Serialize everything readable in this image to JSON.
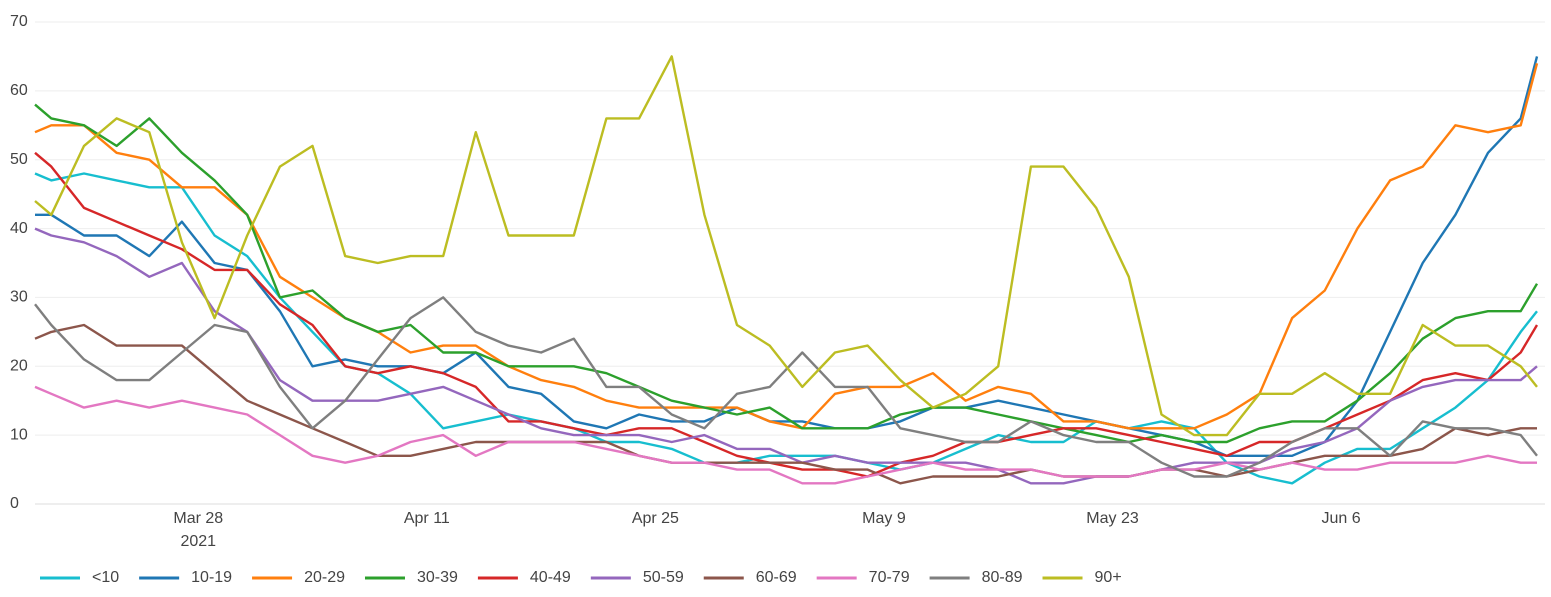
{
  "chart_data": {
    "type": "line",
    "x": [
      "2021-03-18",
      "2021-03-19",
      "2021-03-21",
      "2021-03-23",
      "2021-03-25",
      "2021-03-27",
      "2021-03-29",
      "2021-03-31",
      "2021-04-02",
      "2021-04-04",
      "2021-04-06",
      "2021-04-08",
      "2021-04-10",
      "2021-04-12",
      "2021-04-14",
      "2021-04-16",
      "2021-04-18",
      "2021-04-20",
      "2021-04-22",
      "2021-04-24",
      "2021-04-26",
      "2021-04-28",
      "2021-04-30",
      "2021-05-02",
      "2021-05-04",
      "2021-05-06",
      "2021-05-08",
      "2021-05-10",
      "2021-05-12",
      "2021-05-14",
      "2021-05-16",
      "2021-05-18",
      "2021-05-20",
      "2021-05-22",
      "2021-05-24",
      "2021-05-26",
      "2021-05-28",
      "2021-05-30",
      "2021-06-01",
      "2021-06-03",
      "2021-06-05",
      "2021-06-07",
      "2021-06-09",
      "2021-06-11",
      "2021-06-13",
      "2021-06-15",
      "2021-06-17",
      "2021-06-18"
    ],
    "xlim": [
      "2021-03-18",
      "2021-06-18"
    ],
    "xticks": [
      {
        "value": "2021-03-28",
        "label": "Mar 28"
      },
      {
        "value": "2021-04-11",
        "label": "Apr 11"
      },
      {
        "value": "2021-04-25",
        "label": "Apr 25"
      },
      {
        "value": "2021-05-09",
        "label": "May 9"
      },
      {
        "value": "2021-05-23",
        "label": "May 23"
      },
      {
        "value": "2021-06-06",
        "label": "Jun 6"
      }
    ],
    "x_year": "2021",
    "ylim": [
      0,
      70
    ],
    "yticks": [
      0,
      10,
      20,
      30,
      40,
      50,
      60,
      70
    ],
    "grid": true,
    "legend": "bottom",
    "series": [
      {
        "name": "<10",
        "color": "#17becf",
        "values": [
          48,
          47,
          48,
          47,
          46,
          46,
          39,
          36,
          30,
          25,
          20,
          19,
          16,
          11,
          12,
          13,
          12,
          11,
          9,
          9,
          8,
          6,
          6,
          7,
          7,
          7,
          6,
          5,
          6,
          8,
          10,
          9,
          9,
          12,
          11,
          12,
          11,
          6,
          4,
          3,
          6,
          8,
          8,
          11,
          14,
          18,
          25,
          28
        ]
      },
      {
        "name": "10-19",
        "color": "#1f77b4",
        "values": [
          42,
          42,
          39,
          39,
          36,
          41,
          35,
          34,
          28,
          20,
          21,
          20,
          20,
          19,
          22,
          17,
          16,
          12,
          11,
          13,
          12,
          12,
          14,
          12,
          12,
          11,
          11,
          12,
          14,
          14,
          15,
          14,
          13,
          12,
          11,
          10,
          9,
          7,
          7,
          7,
          9,
          15,
          25,
          35,
          42,
          51,
          56,
          65
        ]
      },
      {
        "name": "20-29",
        "color": "#ff7f0e",
        "values": [
          54,
          55,
          55,
          51,
          50,
          46,
          46,
          42,
          33,
          30,
          27,
          25,
          22,
          23,
          23,
          20,
          18,
          17,
          15,
          14,
          14,
          14,
          14,
          12,
          11,
          16,
          17,
          17,
          19,
          15,
          17,
          16,
          12,
          12,
          11,
          11,
          11,
          13,
          16,
          27,
          31,
          40,
          47,
          49,
          55,
          54,
          55,
          64
        ]
      },
      {
        "name": "30-39",
        "color": "#2ca02c",
        "values": [
          58,
          56,
          55,
          52,
          56,
          51,
          47,
          42,
          30,
          31,
          27,
          25,
          26,
          22,
          22,
          20,
          20,
          20,
          19,
          17,
          15,
          14,
          13,
          14,
          11,
          11,
          11,
          13,
          14,
          14,
          13,
          12,
          11,
          10,
          9,
          10,
          9,
          9,
          11,
          12,
          12,
          15,
          19,
          24,
          27,
          28,
          28,
          32
        ]
      },
      {
        "name": "40-49",
        "color": "#d62728",
        "values": [
          51,
          49,
          43,
          41,
          39,
          37,
          34,
          34,
          29,
          26,
          20,
          19,
          20,
          19,
          17,
          12,
          12,
          11,
          10,
          11,
          11,
          9,
          7,
          6,
          5,
          5,
          4,
          6,
          7,
          9,
          9,
          10,
          11,
          11,
          10,
          9,
          8,
          7,
          9,
          9,
          11,
          13,
          15,
          18,
          19,
          18,
          22,
          26
        ]
      },
      {
        "name": "50-59",
        "color": "#9467bd",
        "values": [
          40,
          39,
          38,
          36,
          33,
          35,
          28,
          25,
          18,
          15,
          15,
          15,
          16,
          17,
          15,
          13,
          11,
          10,
          10,
          10,
          9,
          10,
          8,
          8,
          6,
          7,
          6,
          6,
          6,
          6,
          5,
          3,
          3,
          4,
          4,
          5,
          6,
          6,
          6,
          8,
          9,
          11,
          15,
          17,
          18,
          18,
          18,
          20
        ]
      },
      {
        "name": "60-69",
        "color": "#8c564b",
        "values": [
          24,
          25,
          26,
          23,
          23,
          23,
          19,
          15,
          13,
          11,
          9,
          7,
          7,
          8,
          9,
          9,
          9,
          9,
          9,
          7,
          6,
          6,
          6,
          6,
          6,
          5,
          5,
          3,
          4,
          4,
          4,
          5,
          4,
          4,
          4,
          5,
          5,
          4,
          5,
          6,
          7,
          7,
          7,
          8,
          11,
          10,
          11,
          11
        ]
      },
      {
        "name": "70-79",
        "color": "#e377c2",
        "values": [
          17,
          16,
          14,
          15,
          14,
          15,
          14,
          13,
          10,
          7,
          6,
          7,
          9,
          10,
          7,
          9,
          9,
          9,
          8,
          7,
          6,
          6,
          5,
          5,
          3,
          3,
          4,
          5,
          6,
          5,
          5,
          5,
          4,
          4,
          4,
          5,
          5,
          6,
          5,
          6,
          5,
          5,
          6,
          6,
          6,
          7,
          6,
          6
        ]
      },
      {
        "name": "80-89",
        "color": "#7f7f7f",
        "values": [
          29,
          26,
          21,
          18,
          18,
          22,
          26,
          25,
          17,
          11,
          15,
          21,
          27,
          30,
          25,
          23,
          22,
          24,
          17,
          17,
          13,
          11,
          16,
          17,
          22,
          17,
          17,
          11,
          10,
          9,
          9,
          12,
          10,
          9,
          9,
          6,
          4,
          4,
          6,
          9,
          11,
          11,
          7,
          12,
          11,
          11,
          10,
          7
        ]
      },
      {
        "name": "90+",
        "color": "#bcbd22",
        "values": [
          44,
          42,
          52,
          56,
          54,
          38,
          27,
          39,
          49,
          52,
          36,
          35,
          36,
          36,
          54,
          39,
          39,
          39,
          56,
          56,
          65,
          42,
          26,
          23,
          17,
          22,
          23,
          18,
          14,
          16,
          20,
          49,
          49,
          43,
          33,
          13,
          10,
          10,
          16,
          16,
          19,
          16,
          16,
          26,
          23,
          23,
          20,
          17
        ]
      }
    ]
  }
}
